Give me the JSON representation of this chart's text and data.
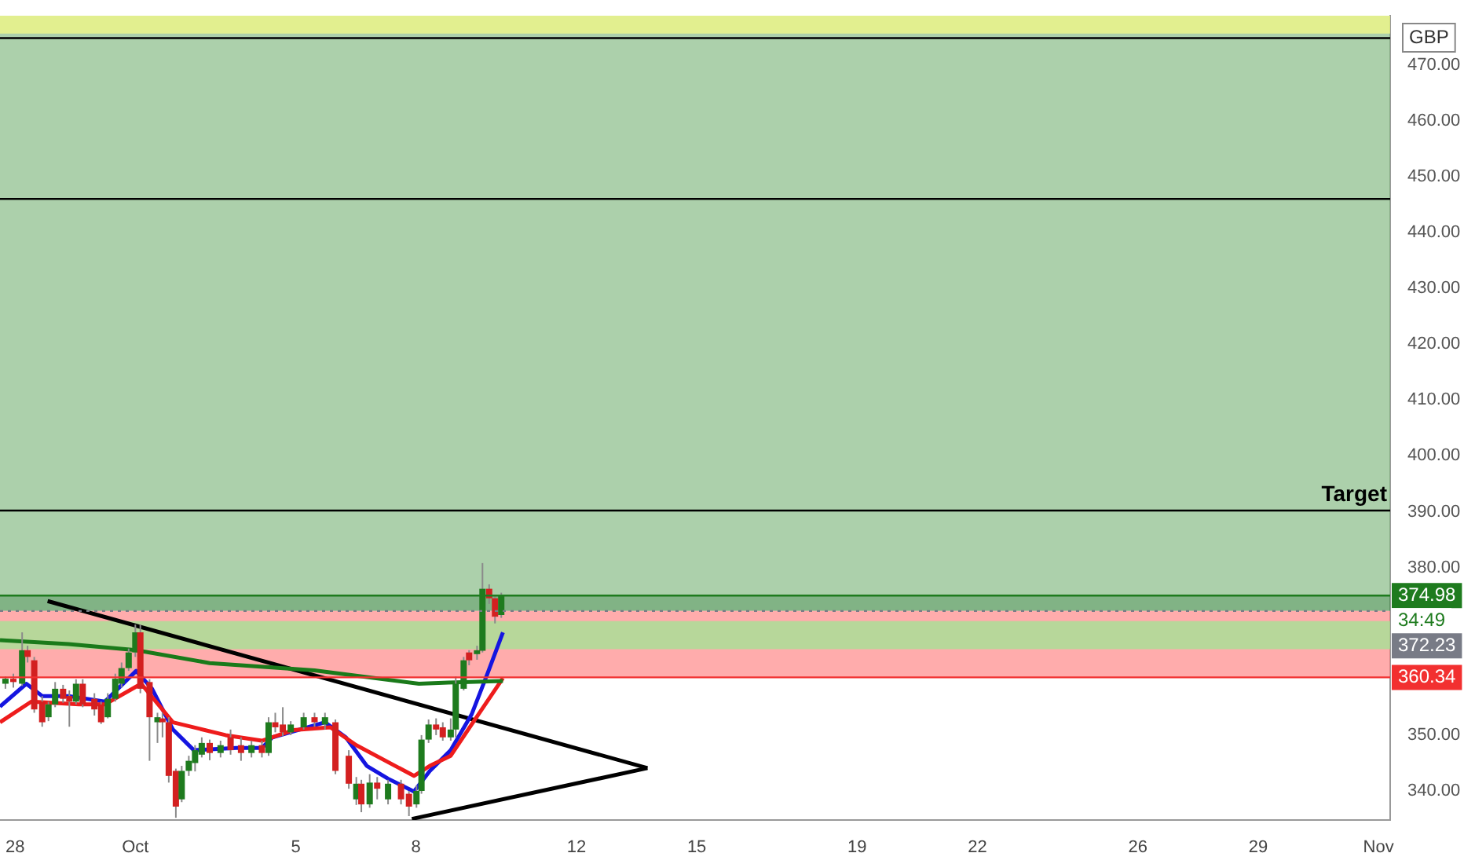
{
  "chart_data": {
    "type": "candlestick",
    "x": [
      "--09-27T18:15",
      "--09-27T23:00",
      "--09-28T04:15",
      "--09-28T07:30",
      "--09-28T11:30",
      "--09-28T16:15",
      "--09-28T20:00",
      "--09-29T00:00",
      "--09-29T04:45",
      "--09-29T08:30",
      "--09-29T12:30",
      "--09-29T16:30",
      "--09-29T23:30",
      "--09-30T03:30",
      "--09-30T07:30",
      "--09-30T12:00",
      "--09-30T15:45",
      "--09-30T20:00",
      "--10-01T00:00",
      "--10-01T03:00",
      "--10-01T08:30",
      "--10-01T13:15",
      "--10-01T16:15",
      "--10-01T20:00",
      "--10-02T00:15",
      "--10-02T03:45",
      "--10-02T08:00",
      "--10-02T11:45",
      "--10-02T15:45",
      "--10-02T20:30",
      "--10-03T03:00",
      "--10-03T09:00",
      "--10-03T15:15",
      "--10-03T21:30",
      "--10-04T03:45",
      "--10-04T07:45",
      "--10-04T11:45",
      "--10-04T16:15",
      "--10-04T21:00",
      "--10-05T04:45",
      "--10-05T11:15",
      "--10-05T17:30",
      "--10-05T23:45",
      "--10-06T07:45",
      "--10-06T12:15",
      "--10-06T15:15",
      "--10-06T20:15",
      "--10-07T00:45",
      "--10-07T07:15",
      "--10-07T15:00",
      "--10-07T19:45",
      "--10-08T00:15",
      "--10-08T03:15",
      "--10-08T07:30",
      "--10-08T12:00",
      "--10-08T16:00",
      "--10-08T20:45",
      "--10-08T23:45",
      "--10-09T04:30",
      "--10-09T07:45",
      "--10-09T12:30",
      "--10-09T15:45",
      "--10-09T19:45",
      "--10-09T23:15",
      "--10-10T03:00"
    ],
    "ohlc": [
      [
        359.2,
        360.5,
        358.3,
        360.1
      ],
      [
        360.1,
        361,
        358.5,
        359.5
      ],
      [
        359.2,
        368.4,
        358.8,
        365.2
      ],
      [
        365.2,
        366,
        363,
        364
      ],
      [
        363.4,
        364,
        354,
        354.6
      ],
      [
        356,
        357,
        351.5,
        352.3
      ],
      [
        353.2,
        356,
        352.5,
        355.5
      ],
      [
        355.5,
        359.5,
        355,
        358.3
      ],
      [
        358.3,
        359,
        355.8,
        356.5
      ],
      [
        357,
        358,
        351.5,
        356
      ],
      [
        356,
        360,
        355.5,
        359.2
      ],
      [
        359.2,
        360,
        355,
        355.5
      ],
      [
        356.5,
        357.5,
        353.5,
        354.6
      ],
      [
        355.5,
        356,
        352,
        352.3
      ],
      [
        353.2,
        357.5,
        353,
        356.5
      ],
      [
        356.5,
        361,
        356,
        360.1
      ],
      [
        359.2,
        363,
        358.5,
        362
      ],
      [
        362,
        365.5,
        361.5,
        364.8
      ],
      [
        364.8,
        369.8,
        364,
        368.4
      ],
      [
        368.4,
        369.8,
        357.5,
        358.3
      ],
      [
        359.5,
        360,
        345.4,
        353.2
      ],
      [
        352.3,
        354,
        348.6,
        353.2
      ],
      [
        353,
        354,
        349.6,
        352.3
      ],
      [
        352.3,
        353.2,
        341.5,
        342.7
      ],
      [
        343.6,
        344,
        335.2,
        337.2
      ],
      [
        338.5,
        344.5,
        338,
        343.6
      ],
      [
        343.6,
        346.3,
        342.7,
        345.4
      ],
      [
        345,
        348.2,
        343.5,
        347.3
      ],
      [
        346.5,
        349.6,
        346,
        348.6
      ],
      [
        348.6,
        349.2,
        345.5,
        346.8
      ],
      [
        346.8,
        349,
        346,
        348.2
      ],
      [
        349.6,
        351,
        346.5,
        347.3
      ],
      [
        348.2,
        349.6,
        345.4,
        346.8
      ],
      [
        346.8,
        349,
        346,
        348.2
      ],
      [
        348.2,
        349,
        346,
        346.8
      ],
      [
        346.8,
        353.2,
        346.3,
        352.3
      ],
      [
        352.3,
        354,
        350.5,
        351.4
      ],
      [
        351.9,
        355,
        349.8,
        350.5
      ],
      [
        350.5,
        352.5,
        350,
        351.9
      ],
      [
        351.4,
        354,
        351,
        353.2
      ],
      [
        353.2,
        354,
        351.5,
        352.3
      ],
      [
        351.9,
        354,
        351,
        353.2
      ],
      [
        352.3,
        352.8,
        343,
        343.6
      ],
      [
        346.3,
        347.3,
        340.4,
        341.3
      ],
      [
        338.5,
        342.5,
        337.5,
        341.3
      ],
      [
        341.3,
        342,
        336.2,
        337.6
      ],
      [
        337.6,
        343,
        337,
        341.5
      ],
      [
        341.5,
        342.5,
        338.5,
        340.4
      ],
      [
        338.5,
        342,
        337.6,
        341.3
      ],
      [
        341.3,
        342,
        337.6,
        338.5
      ],
      [
        339.5,
        340,
        335.5,
        337.2
      ],
      [
        337.6,
        341,
        337,
        340
      ],
      [
        340,
        350,
        339.5,
        349.2
      ],
      [
        349.2,
        352.8,
        348.6,
        351.9
      ],
      [
        351.9,
        353,
        350,
        351
      ],
      [
        351.4,
        352.3,
        349,
        349.6
      ],
      [
        349.6,
        353,
        349,
        351
      ],
      [
        351,
        360.5,
        349.6,
        359.2
      ],
      [
        358.3,
        364,
        358,
        363.4
      ],
      [
        364.8,
        365.2,
        362.5,
        363.4
      ],
      [
        364.5,
        366,
        363.5,
        365.2
      ],
      [
        365.1,
        380.8,
        364.8,
        376.2
      ],
      [
        376.2,
        377,
        373.5,
        374.5
      ],
      [
        374.5,
        375,
        370,
        371.2
      ],
      [
        371.5,
        375.5,
        371,
        375
      ]
    ],
    "series": [
      {
        "type": "line",
        "color": "#1a7a1a",
        "x": [
          "--09-27T15:00",
          "--09-29T08:00",
          "--10-01T00:30",
          "--10-02T20:30",
          "--10-05T11:15",
          "--10-08T01:45",
          "--10-08T19:15",
          "--10-10T04:00"
        ],
        "values": [
          367,
          366.3,
          365.2,
          362.9,
          361.6,
          359.2,
          359.4,
          359.7
        ]
      },
      {
        "type": "line",
        "color": "#ee1c1c",
        "x": [
          "--09-27T15:00",
          "--09-28T09:45",
          "--09-29T14:15",
          "--09-30T05:45",
          "--10-01T03:30",
          "--10-01T22:30",
          "--10-03T06:00",
          "--10-04T03:45",
          "--10-04T22:30",
          "--10-05T20:45",
          "--10-06T12:15",
          "--10-07T22:45",
          "--10-08T08:15",
          "--10-08T20:45",
          "--10-09T09:15",
          "--10-10T04:00"
        ],
        "values": [
          352.3,
          356,
          355.5,
          355.5,
          359.2,
          352.3,
          350,
          349,
          350.9,
          351.4,
          348.2,
          342.7,
          344.5,
          346.3,
          351.9,
          360.2
        ]
      },
      {
        "type": "line",
        "color": "#1515e0",
        "x": [
          "--09-27T15:00",
          "--09-28T06:45",
          "--09-28T16:15",
          "--09-29T08:00",
          "--09-30T05:45",
          "--10-01T00:30",
          "--10-01T10:00",
          "--10-01T22:30",
          "--10-02T11:00",
          "--10-03T12:15",
          "--10-04T03:45",
          "--10-04T10:00",
          "--10-05T17:30",
          "--10-06T06:00",
          "--10-06T18:30",
          "--10-07T07:15",
          "--10-07T22:45",
          "--10-08T08:15",
          "--10-08T20:45",
          "--10-09T09:15",
          "--10-09T18:45",
          "--10-10T04:00"
        ],
        "values": [
          355.1,
          359.2,
          357,
          357,
          356,
          361.5,
          358.3,
          351,
          347.3,
          347.7,
          347.7,
          349.6,
          352.3,
          349.6,
          344.5,
          342.2,
          339.9,
          343.6,
          347.3,
          353.7,
          361,
          368.4
        ]
      },
      {
        "type": "line",
        "color": "#000000",
        "x": [
          "--09-28T19:30",
          "--10-13T18:30"
        ],
        "values": [
          374.0,
          344.1
        ]
      },
      {
        "type": "line",
        "color": "#000000",
        "x": [
          "--10-07T21:30",
          "--10-13T18:30"
        ],
        "values": [
          335.0,
          344.1
        ]
      }
    ],
    "xlim": [
      "--09-27T15:00",
      "--11-01T07:00"
    ],
    "xticks": [
      {
        "value": "--09-28",
        "label": "28"
      },
      {
        "value": "--10-01",
        "label": "Oct"
      },
      {
        "value": "--10-05",
        "label": "5"
      },
      {
        "value": "--10-08",
        "label": "8"
      },
      {
        "value": "--10-12",
        "label": "12"
      },
      {
        "value": "--10-15",
        "label": "15"
      },
      {
        "value": "--10-19",
        "label": "19"
      },
      {
        "value": "--10-22",
        "label": "22"
      },
      {
        "value": "--10-26",
        "label": "26"
      },
      {
        "value": "--10-29",
        "label": "29"
      },
      {
        "value": "--11-01",
        "label": "Nov"
      }
    ],
    "ylim": [
      334.8,
      478.8
    ],
    "yticks": [
      {
        "value": 340,
        "label": "340.00"
      },
      {
        "value": 350,
        "label": "350.00"
      },
      {
        "value": 380,
        "label": "380.00"
      },
      {
        "value": 390,
        "label": "390.00"
      },
      {
        "value": 400,
        "label": "400.00"
      },
      {
        "value": 410,
        "label": "410.00"
      },
      {
        "value": 420,
        "label": "420.00"
      },
      {
        "value": 430,
        "label": "430.00"
      },
      {
        "value": 440,
        "label": "440.00"
      },
      {
        "value": 450,
        "label": "450.00"
      },
      {
        "value": 460,
        "label": "460.00"
      },
      {
        "value": 470,
        "label": "470.00"
      }
    ],
    "bands": [
      {
        "axis": "y",
        "from": 374.98,
        "to": 478.8,
        "color": "#7fb77e"
      },
      {
        "axis": "y",
        "from": 372.23,
        "to": 374.98,
        "color": "#3d8b44"
      },
      {
        "axis": "y",
        "from": 360.34,
        "to": 372.23,
        "color": "#ff8080"
      },
      {
        "axis": "y",
        "from": 365.4,
        "to": 370.4,
        "color": "#90ee90"
      },
      {
        "axis": "y",
        "from": 475.6,
        "to": 478.8,
        "color": "#ffff80"
      }
    ],
    "ref_lines": [
      {
        "axis": "y",
        "value": 474.8
      },
      {
        "axis": "y",
        "value": 446.0
      },
      {
        "axis": "y",
        "value": 390.2,
        "label": "Target"
      },
      {
        "axis": "y",
        "value": 374.98,
        "color": "#1e7b1e",
        "label": "374.98"
      },
      {
        "axis": "y",
        "value": 372.23,
        "color": "#787b86",
        "label": "372.23",
        "line_style": "dotted"
      },
      {
        "axis": "y",
        "value": 360.34,
        "color": "#f23030",
        "label": "360.34"
      }
    ],
    "annotations": [
      "GBP",
      "34:49"
    ]
  }
}
